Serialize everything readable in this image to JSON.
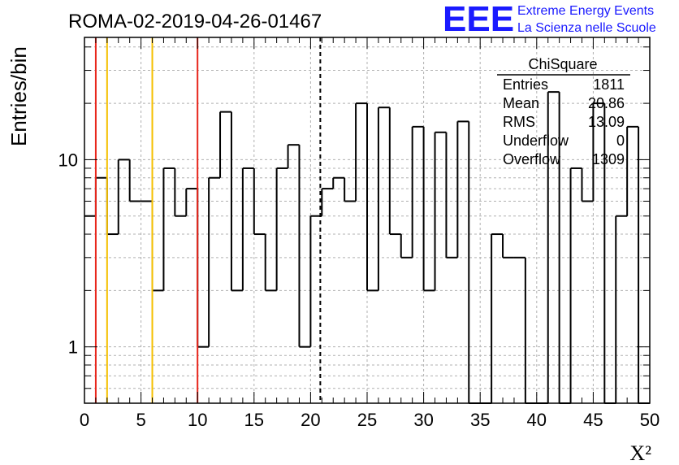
{
  "header": {
    "title": "ROMA-02-2019-04-26-01467",
    "logo_mark": "EEE",
    "logo_line1": "Extreme Energy Events",
    "logo_line2": "La Scienza nelle Scuole",
    "logo_color": "#1a1aff"
  },
  "stats": {
    "title": "ChiSquare",
    "rows": [
      {
        "label": "Entries",
        "value": "1811"
      },
      {
        "label": "Mean",
        "value": "20.86"
      },
      {
        "label": "RMS",
        "value": "13.09"
      },
      {
        "label": "Underflow",
        "value": "0"
      },
      {
        "label": "Overflow",
        "value": "1309"
      }
    ]
  },
  "chart_data": {
    "type": "bar",
    "histogram": "step",
    "xlabel": "X²",
    "ylabel": "Entries/bin",
    "xlim": [
      0,
      50
    ],
    "ylim": [
      0.5,
      45
    ],
    "yscale": "log",
    "grid": true,
    "bin_width": 1,
    "x_ticks": [
      0,
      5,
      10,
      15,
      20,
      25,
      30,
      35,
      40,
      45,
      50
    ],
    "y_ticks": [
      1,
      10
    ],
    "bin_edges_start": 0,
    "values": [
      5,
      8,
      4,
      10,
      6,
      6,
      2,
      9,
      5,
      7,
      1,
      8,
      18,
      2,
      9,
      4,
      2,
      9,
      12,
      1,
      5,
      7,
      8,
      6,
      20,
      2,
      19,
      4,
      3,
      15,
      2,
      14,
      3,
      16,
      0.4,
      0.4,
      4,
      3,
      3,
      0.4,
      0.4,
      23,
      0.4,
      9,
      6,
      20,
      0.4,
      5,
      15,
      0.4
    ],
    "vertical_lines": [
      {
        "x": 1,
        "color": "#e8261c",
        "style": "solid"
      },
      {
        "x": 2,
        "color": "#f5c000",
        "style": "solid"
      },
      {
        "x": 6,
        "color": "#f5c000",
        "style": "solid"
      },
      {
        "x": 10,
        "color": "#e8261c",
        "style": "solid"
      },
      {
        "x": 20.86,
        "color": "#000000",
        "style": "dashed"
      }
    ]
  }
}
